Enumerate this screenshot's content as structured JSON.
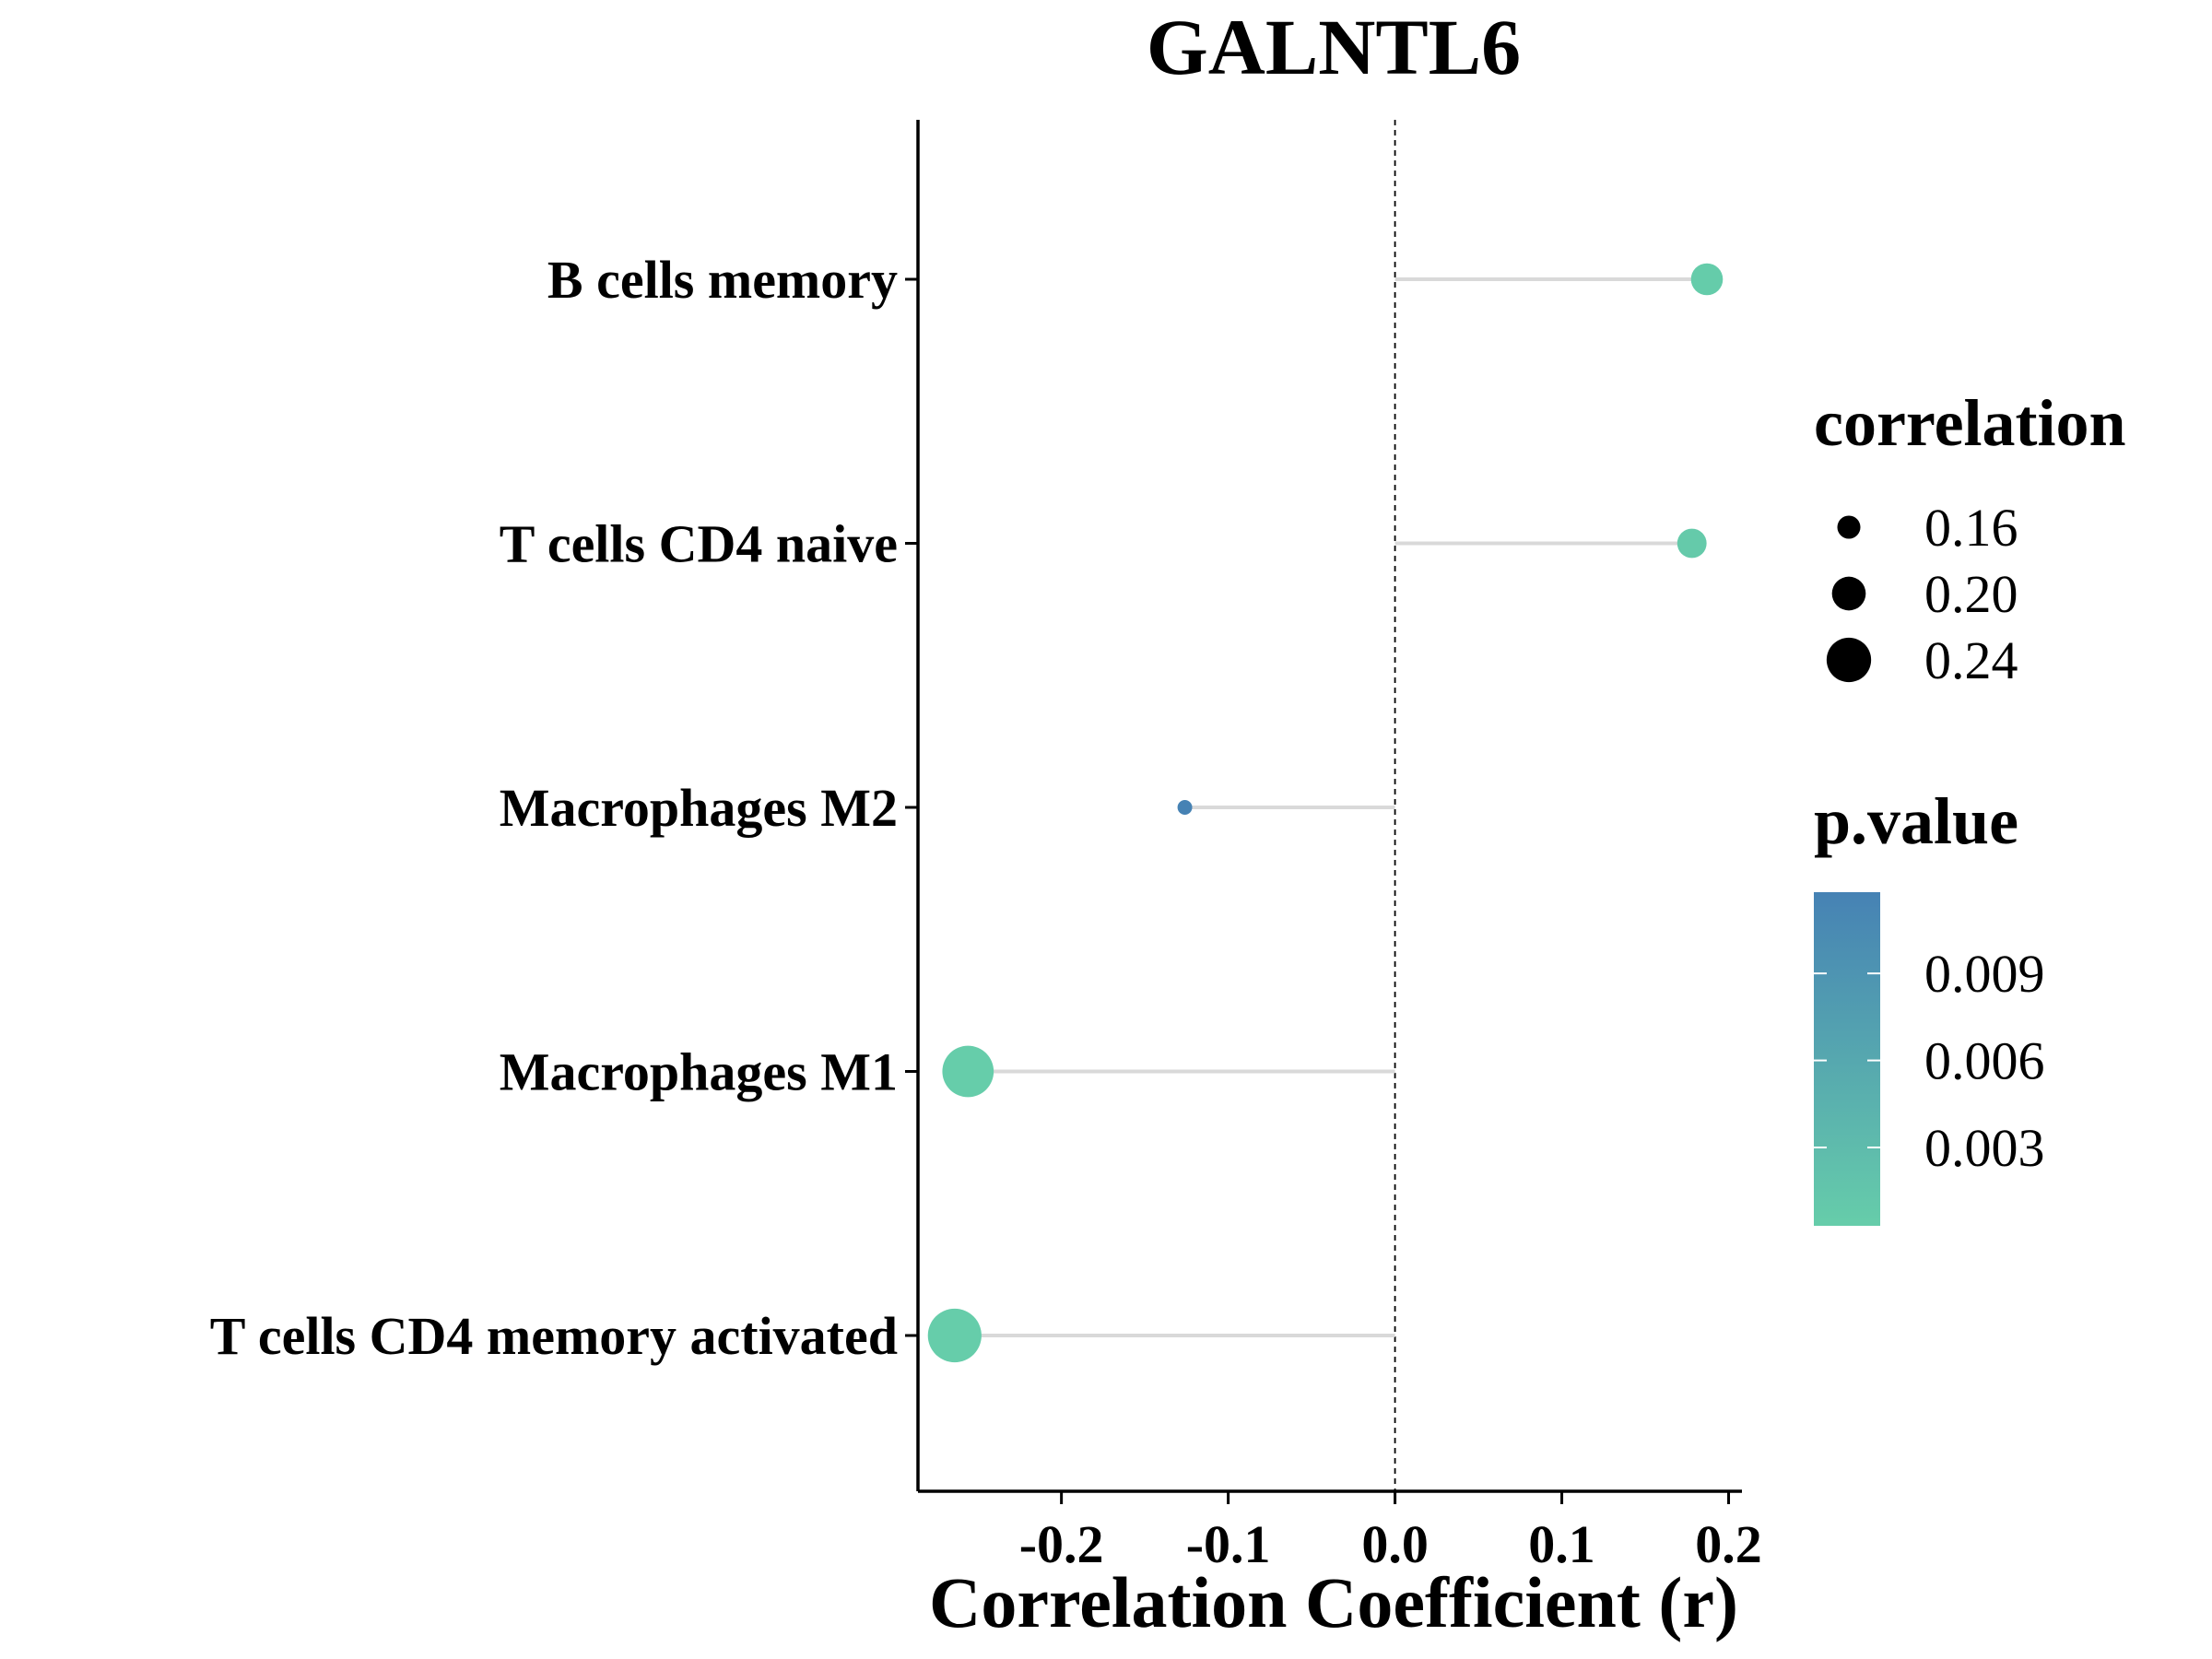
{
  "chart_data": {
    "type": "lollipop",
    "title": "GALNTL6",
    "xlabel": "Correlation Coefficient (r)",
    "ylabel": "",
    "xlim": [
      -0.286,
      0.208
    ],
    "x_ticks": [
      -0.2,
      -0.1,
      0.0,
      0.1,
      0.2
    ],
    "x_tick_labels": [
      "-0.2",
      "-0.1",
      "0.0",
      "0.1",
      "0.2"
    ],
    "reference_line": 0.0,
    "categories": [
      "B cells memory",
      "T cells CD4 naive",
      "Macrophages M2",
      "Macrophages M1",
      "T cells CD4 memory activated"
    ],
    "values": [
      0.187,
      0.178,
      -0.126,
      -0.256,
      -0.264
    ],
    "p_values": [
      0.0005,
      0.0008,
      0.0118,
      0.0003,
      0.0003
    ],
    "legend": {
      "size_title": "correlation",
      "size_breaks": [
        0.16,
        0.2,
        0.24
      ],
      "size_labels": [
        "0.16",
        "0.20",
        "0.24"
      ],
      "color_title": "p.value",
      "color_breaks": [
        0.009,
        0.006,
        0.003
      ],
      "color_labels": [
        "0.009",
        "0.006",
        "0.003"
      ],
      "color_range": [
        0.0003,
        0.0118
      ],
      "color_low": "#66CDAA",
      "color_high": "#4682B4",
      "placement": "right"
    },
    "segment_color": "#D9D9D9",
    "grid": false
  }
}
